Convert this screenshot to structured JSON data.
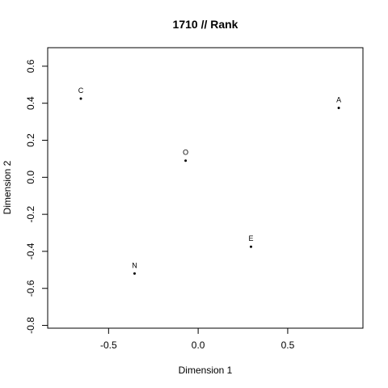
{
  "chart_data": {
    "type": "scatter",
    "title": "1710 // Rank",
    "xlabel": "Dimension 1",
    "ylabel": "Dimension 2",
    "xlim": [
      -0.84,
      0.92
    ],
    "ylim": [
      -0.815,
      0.7
    ],
    "x_ticks": [
      -0.5,
      0.0,
      0.5
    ],
    "x_tick_labels": [
      "-0.5",
      "0.0",
      "0.5"
    ],
    "y_ticks": [
      -0.8,
      -0.6,
      -0.4,
      -0.2,
      0.0,
      0.2,
      0.4,
      0.6
    ],
    "y_tick_labels": [
      "-0.8",
      "-0.6",
      "-0.4",
      "-0.2",
      "0.0",
      "0.2",
      "0.4",
      "0.6"
    ],
    "grid": false,
    "points": [
      {
        "label": "C",
        "x": -0.655,
        "y": 0.425
      },
      {
        "label": "A",
        "x": 0.785,
        "y": 0.375
      },
      {
        "label": "O",
        "x": -0.07,
        "y": 0.09
      },
      {
        "label": "E",
        "x": 0.295,
        "y": -0.375
      },
      {
        "label": "N",
        "x": -0.355,
        "y": -0.52
      }
    ]
  }
}
